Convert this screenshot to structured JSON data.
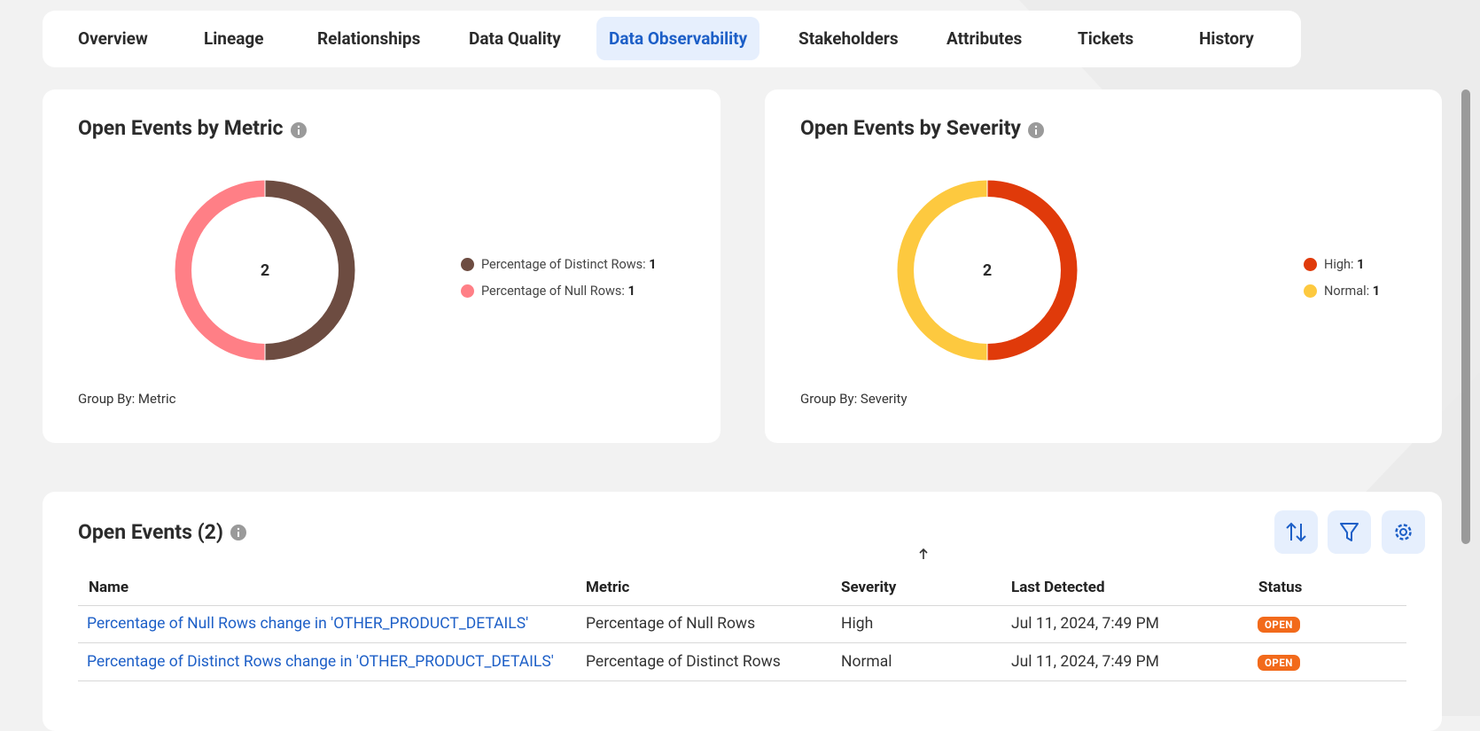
{
  "tabs": [
    {
      "label": "Overview"
    },
    {
      "label": "Lineage"
    },
    {
      "label": "Relationships"
    },
    {
      "label": "Data Quality"
    },
    {
      "label": "Data Observability",
      "active": true
    },
    {
      "label": "Stakeholders"
    },
    {
      "label": "Attributes"
    },
    {
      "label": "Tickets"
    },
    {
      "label": "History"
    }
  ],
  "chart_data": [
    {
      "type": "pie",
      "donut": true,
      "title": "Open Events by Metric",
      "total": 2,
      "categories": [
        "Percentage of Distinct Rows:",
        "Percentage of Null Rows:"
      ],
      "values": [
        1,
        1
      ],
      "colors": [
        "#6d4c41",
        "#ff7f86"
      ],
      "annotation": "Group By: Metric"
    },
    {
      "type": "pie",
      "donut": true,
      "title": "Open Events by Severity",
      "total": 2,
      "categories": [
        "High:",
        "Normal:"
      ],
      "values": [
        1,
        1
      ],
      "colors": [
        "#e03a0a",
        "#fdc93f"
      ],
      "annotation": "Group By: Severity"
    }
  ],
  "events": {
    "title": "Open Events (2)",
    "columns": [
      "Name",
      "Metric",
      "Severity",
      "Last Detected",
      "Status"
    ],
    "rows": [
      [
        "Percentage of Null Rows change in 'OTHER_PRODUCT_DETAILS'",
        "Percentage of Null Rows",
        "High",
        "Jul 11, 2024, 7:49 PM",
        "OPEN"
      ],
      [
        "Percentage of Distinct Rows change in 'OTHER_PRODUCT_DETAILS'",
        "Percentage of Distinct Rows",
        "Normal",
        "Jul 11, 2024, 7:49 PM",
        "OPEN"
      ]
    ]
  }
}
